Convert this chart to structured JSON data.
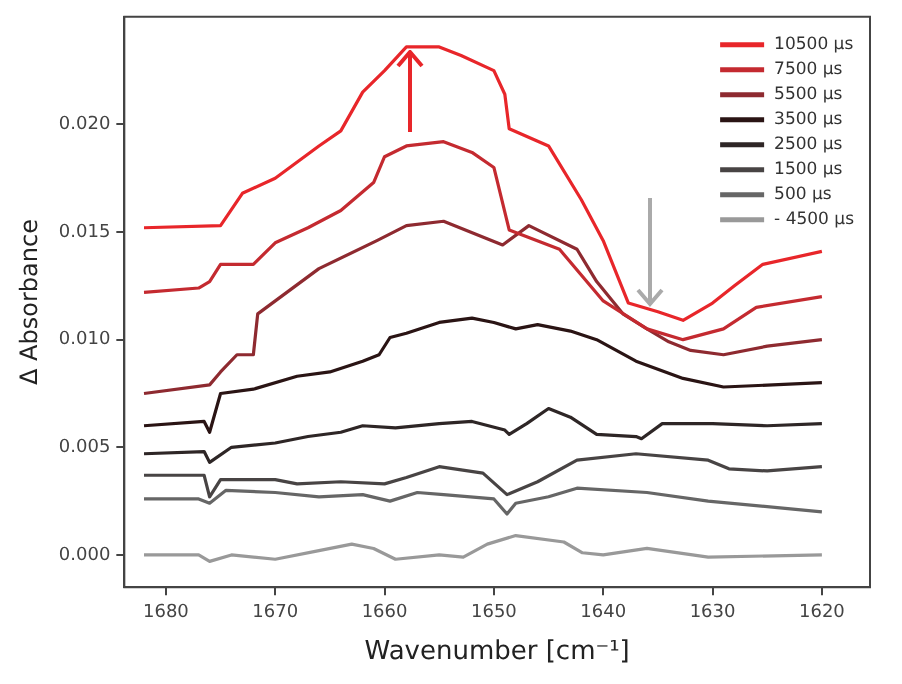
{
  "chart_data": {
    "type": "line",
    "xlabel": "Wavenumber [cm⁻¹]",
    "ylabel": "Δ Absorbance",
    "xlim": [
      1683.8,
      1615.6
    ],
    "xticks": [
      1680,
      1670,
      1660,
      1650,
      1640,
      1630,
      1620
    ],
    "ylim": [
      -0.0015,
      0.025
    ],
    "yticks": [
      {
        "value": 0,
        "label": "0.000"
      },
      {
        "value": 0.005,
        "label": "0.005"
      },
      {
        "value": 0.01,
        "label": "0.010"
      },
      {
        "value": 0.015,
        "label": "0.015"
      },
      {
        "value": 0.02,
        "label": "0.020"
      }
    ],
    "grid": false,
    "legend": "top right",
    "marker": "none",
    "line_style": "solid",
    "series": [
      {
        "name": "10500 µs",
        "color": "#e8262a",
        "x": [
          1682,
          1675,
          1673,
          1670,
          1666,
          1664,
          1662,
          1660,
          1658,
          1655,
          1653,
          1650,
          1649,
          1648.6,
          1645,
          1642,
          1640,
          1637.7,
          1635,
          1632.7,
          1630,
          1628,
          1625.4,
          1620
        ],
        "values": [
          0.0152,
          0.0153,
          0.0168,
          0.0175,
          0.019,
          0.0197,
          0.0215,
          0.0225,
          0.0236,
          0.0236,
          0.0232,
          0.0225,
          0.0214,
          0.0198,
          0.019,
          0.0165,
          0.0146,
          0.0117,
          0.0113,
          0.0109,
          0.0117,
          0.0125,
          0.0135,
          0.0141
        ]
      },
      {
        "name": "7500 µs",
        "color": "#c42a30",
        "x": [
          1682,
          1677,
          1676,
          1675,
          1672,
          1670,
          1667,
          1664,
          1661,
          1660,
          1658,
          1654.6,
          1652,
          1650,
          1648.6,
          1644,
          1640,
          1636,
          1632.7,
          1629,
          1626,
          1620
        ],
        "values": [
          0.0122,
          0.0124,
          0.0127,
          0.0135,
          0.0135,
          0.0145,
          0.0152,
          0.016,
          0.0173,
          0.0185,
          0.019,
          0.0192,
          0.0187,
          0.018,
          0.0151,
          0.0142,
          0.0118,
          0.0105,
          0.01,
          0.0105,
          0.0115,
          0.012
        ]
      },
      {
        "name": "5500 µs",
        "color": "#8e2a30",
        "x": [
          1682,
          1676,
          1675,
          1673.5,
          1672,
          1671.6,
          1666,
          1660.7,
          1658,
          1654.6,
          1649.2,
          1646.8,
          1642.4,
          1640.6,
          1638.2,
          1636,
          1634,
          1632,
          1629,
          1625,
          1620
        ],
        "values": [
          0.0075,
          0.0079,
          0.0085,
          0.0093,
          0.0093,
          0.0112,
          0.0133,
          0.0146,
          0.0153,
          0.0155,
          0.0144,
          0.0153,
          0.0142,
          0.0127,
          0.0112,
          0.0105,
          0.0099,
          0.0095,
          0.0093,
          0.0097,
          0.01
        ]
      },
      {
        "name": "3500 µs",
        "color": "#2a1414",
        "x": [
          1682,
          1676.5,
          1676,
          1675,
          1672,
          1668,
          1665,
          1662,
          1660.5,
          1659.5,
          1658,
          1655,
          1652,
          1650,
          1648,
          1646,
          1643,
          1640.6,
          1637,
          1632.7,
          1629,
          1620
        ],
        "values": [
          0.006,
          0.0062,
          0.0057,
          0.0075,
          0.0077,
          0.0083,
          0.0085,
          0.009,
          0.0093,
          0.0101,
          0.0103,
          0.0108,
          0.011,
          0.0108,
          0.0105,
          0.0107,
          0.0104,
          0.01,
          0.009,
          0.0082,
          0.0078,
          0.008
        ]
      },
      {
        "name": "2500 µs",
        "color": "#2e2626",
        "x": [
          1682,
          1676.5,
          1676,
          1674,
          1670,
          1667,
          1664,
          1662,
          1659,
          1655,
          1652,
          1649,
          1648.6,
          1647,
          1645,
          1643,
          1640.6,
          1637,
          1636.5,
          1634.6,
          1630,
          1625,
          1620
        ],
        "values": [
          0.0047,
          0.0048,
          0.0043,
          0.005,
          0.0052,
          0.0055,
          0.0057,
          0.006,
          0.0059,
          0.0061,
          0.0062,
          0.0058,
          0.0056,
          0.0061,
          0.0068,
          0.0064,
          0.0056,
          0.0055,
          0.0054,
          0.0061,
          0.0061,
          0.006,
          0.0061
        ]
      },
      {
        "name": "1500 µs",
        "color": "#484444",
        "x": [
          1682,
          1676.5,
          1676,
          1675,
          1670,
          1668,
          1664,
          1660,
          1658,
          1655,
          1651,
          1648.8,
          1646,
          1642.4,
          1637,
          1630.4,
          1628.5,
          1625,
          1620
        ],
        "values": [
          0.0037,
          0.0037,
          0.0027,
          0.0035,
          0.0035,
          0.0033,
          0.0034,
          0.0033,
          0.0036,
          0.0041,
          0.0038,
          0.0028,
          0.0034,
          0.0044,
          0.0047,
          0.0044,
          0.004,
          0.0039,
          0.0041
        ]
      },
      {
        "name": "500 µs",
        "color": "#666666",
        "x": [
          1682,
          1677,
          1676,
          1674.5,
          1670,
          1666,
          1662,
          1659.5,
          1657,
          1654.6,
          1650,
          1648.8,
          1648,
          1645,
          1642.4,
          1636,
          1630.4,
          1620
        ],
        "values": [
          0.0026,
          0.0026,
          0.0024,
          0.003,
          0.0029,
          0.0027,
          0.0028,
          0.0025,
          0.0029,
          0.0028,
          0.0026,
          0.0019,
          0.0024,
          0.0027,
          0.0031,
          0.0029,
          0.0025,
          0.002
        ]
      },
      {
        "name": "- 4500 µs",
        "color": "#999999",
        "x": [
          1682,
          1677,
          1676,
          1674,
          1670,
          1666,
          1663,
          1661,
          1659,
          1655,
          1652.8,
          1650.6,
          1648,
          1643.6,
          1641.9,
          1640,
          1636,
          1630.4,
          1620
        ],
        "values": [
          0,
          0,
          -0.0003,
          0,
          -0.0002,
          0.0002,
          0.0005,
          0.0003,
          -0.0002,
          0,
          -0.0001,
          0.0005,
          0.0009,
          0.0006,
          0.0001,
          0,
          0.0003,
          -0.0001,
          0
        ]
      }
    ]
  }
}
